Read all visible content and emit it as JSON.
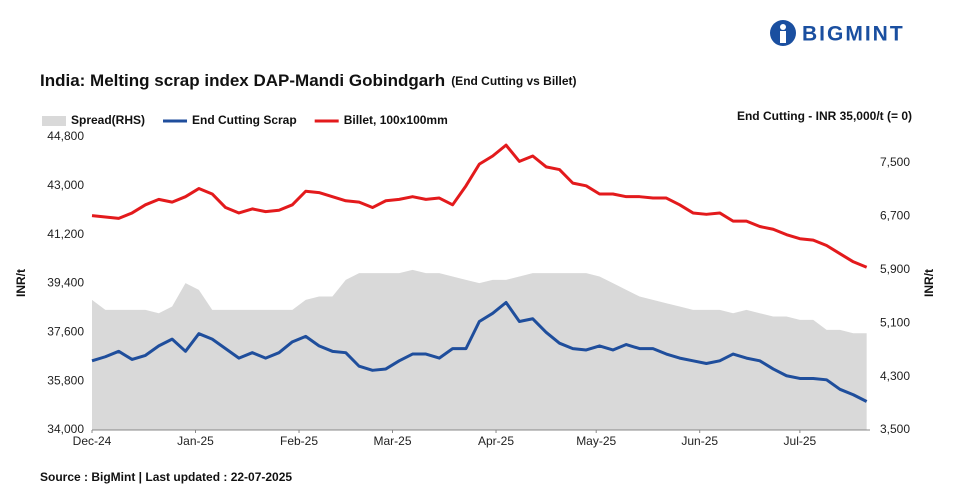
{
  "brand": "BIGMINT",
  "chart_data": {
    "type": "line",
    "title": "India: Melting scrap index DAP-Mandi Gobindgarh",
    "subtitle": "(End Cutting vs Billet)",
    "annotation": "End Cutting - INR 35,000/t (= 0)",
    "source": "Source : BigMint | Last updated : 22-07-2025",
    "y_label": "INR/t",
    "y2_label": "INR/t",
    "legend": "top-left",
    "x": [
      0,
      4,
      8,
      12,
      16,
      20,
      24,
      28,
      32,
      36,
      40,
      44,
      48,
      52,
      56,
      60,
      64,
      68,
      72,
      76,
      80,
      84,
      88,
      92,
      96,
      100,
      104,
      108,
      112,
      116,
      120,
      124,
      128,
      132,
      136,
      140,
      144,
      148,
      152,
      156,
      160,
      164,
      168,
      172,
      176,
      180,
      184,
      188,
      192,
      196,
      200,
      204,
      208,
      212,
      216,
      220,
      224,
      228,
      232
    ],
    "xlim": [
      0,
      233
    ],
    "xticks": [
      {
        "value": 0,
        "label": "Dec-24"
      },
      {
        "value": 31,
        "label": "Jan-25"
      },
      {
        "value": 62,
        "label": "Feb-25"
      },
      {
        "value": 90,
        "label": "Mar-25"
      },
      {
        "value": 121,
        "label": "Apr-25"
      },
      {
        "value": 151,
        "label": "May-25"
      },
      {
        "value": 182,
        "label": "Jun-25"
      },
      {
        "value": 212,
        "label": "Jul-25"
      }
    ],
    "ylim": [
      34000,
      44800
    ],
    "yticks": [
      {
        "value": 34000,
        "label": "34,000"
      },
      {
        "value": 35800,
        "label": "35,800"
      },
      {
        "value": 37600,
        "label": "37,600"
      },
      {
        "value": 39400,
        "label": "39,400"
      },
      {
        "value": 41200,
        "label": "41,200"
      },
      {
        "value": 43000,
        "label": "43,000"
      },
      {
        "value": 44800,
        "label": "44,800"
      }
    ],
    "y2lim": [
      3500,
      7890
    ],
    "y2ticks": [
      {
        "value": 3500,
        "label": "3,500"
      },
      {
        "value": 4300,
        "label": "4,300"
      },
      {
        "value": 5100,
        "label": "5,100"
      },
      {
        "value": 5900,
        "label": "5,900"
      },
      {
        "value": 6700,
        "label": "6,700"
      },
      {
        "value": 7500,
        "label": "7,500"
      }
    ],
    "series": [
      {
        "name": "Spread(RHS)",
        "color": "#d9d9d9",
        "type": "area",
        "axis": "y2",
        "values": [
          5450,
          5300,
          5300,
          5300,
          5300,
          5250,
          5350,
          5700,
          5600,
          5300,
          5300,
          5300,
          5300,
          5300,
          5300,
          5300,
          5450,
          5500,
          5500,
          5750,
          5850,
          5850,
          5850,
          5850,
          5900,
          5850,
          5850,
          5800,
          5750,
          5700,
          5750,
          5750,
          5800,
          5850,
          5850,
          5850,
          5850,
          5850,
          5800,
          5700,
          5600,
          5500,
          5450,
          5400,
          5350,
          5300,
          5300,
          5300,
          5250,
          5300,
          5250,
          5200,
          5200,
          5150,
          5150,
          5000,
          5000,
          4950,
          4950
        ]
      },
      {
        "name": "End Cutting Scrap",
        "color": "#1f4e9c",
        "type": "line",
        "values": [
          36550,
          36700,
          36900,
          36600,
          36750,
          37100,
          37350,
          36900,
          37550,
          37350,
          37000,
          36650,
          36850,
          36650,
          36850,
          37250,
          37450,
          37100,
          36900,
          36850,
          36350,
          36200,
          36250,
          36550,
          36800,
          36800,
          36650,
          37000,
          37000,
          38000,
          38300,
          38700,
          38000,
          38100,
          37600,
          37200,
          37000,
          36950,
          37100,
          36950,
          37150,
          37000,
          37000,
          36800,
          36650,
          36550,
          36450,
          36550,
          36800,
          36650,
          36550,
          36250,
          36000,
          35900,
          35900,
          35850,
          35500,
          35300,
          35050
        ]
      },
      {
        "name": "Billet, 100x100mm",
        "color": "#e31a1c",
        "type": "line",
        "values": [
          41900,
          41850,
          41800,
          42000,
          42300,
          42500,
          42400,
          42600,
          42900,
          42700,
          42200,
          42000,
          42150,
          42050,
          42100,
          42300,
          42800,
          42750,
          42600,
          42450,
          42400,
          42200,
          42450,
          42500,
          42600,
          42500,
          42550,
          42300,
          43000,
          43800,
          44100,
          44500,
          43900,
          44100,
          43700,
          43600,
          43100,
          43000,
          42700,
          42700,
          42600,
          42600,
          42550,
          42550,
          42300,
          42000,
          41950,
          42000,
          41700,
          41700,
          41500,
          41400,
          41200,
          41050,
          41000,
          40800,
          40500,
          40200,
          40000
        ]
      }
    ]
  }
}
